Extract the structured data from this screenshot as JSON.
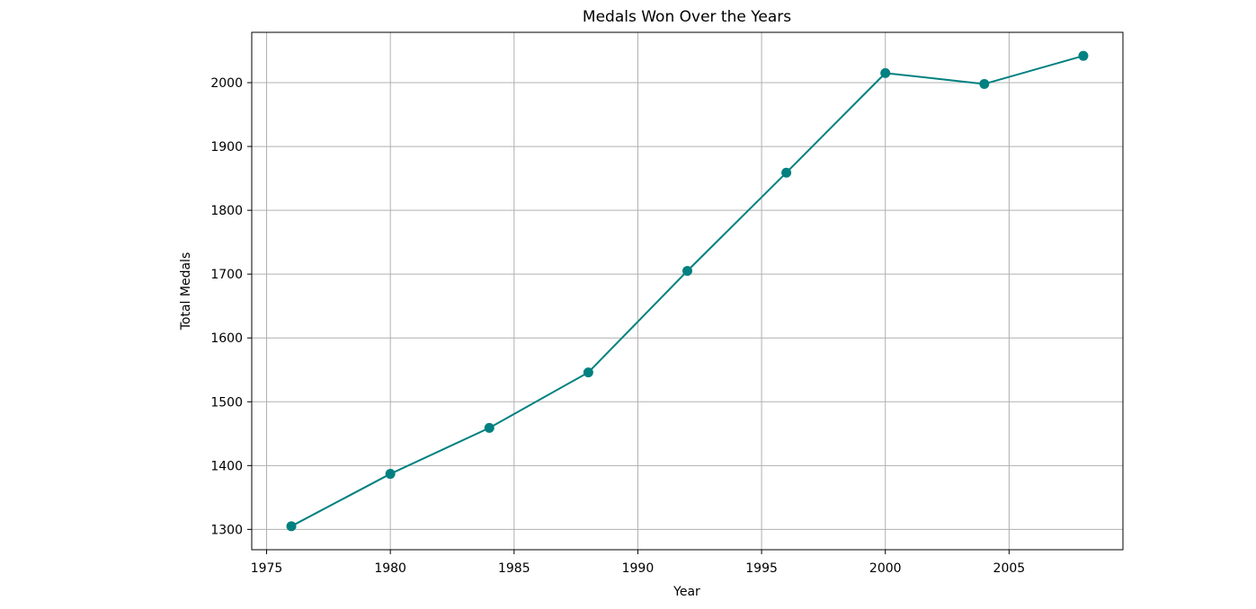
{
  "chart_data": {
    "type": "line",
    "title": "Medals Won Over the Years",
    "xlabel": "Year",
    "ylabel": "Total Medals",
    "x": [
      1976,
      1980,
      1984,
      1988,
      1992,
      1996,
      2000,
      2004,
      2008
    ],
    "series": [
      {
        "values": [
          1305,
          1387,
          1459,
          1546,
          1705,
          1859,
          2015,
          1998,
          2042
        ],
        "color": "#008080"
      }
    ],
    "x_ticks": [
      1975,
      1980,
      1985,
      1990,
      1995,
      2000,
      2005
    ],
    "x_tick_labels": [
      "1975",
      "1980",
      "1985",
      "1990",
      "1995",
      "2000",
      "2005"
    ],
    "y_ticks": [
      1300,
      1400,
      1500,
      1600,
      1700,
      1800,
      1900,
      2000
    ],
    "y_tick_labels": [
      "1300",
      "1400",
      "1500",
      "1600",
      "1700",
      "1800",
      "1900",
      "2000"
    ],
    "xlim": [
      1974.4,
      2009.6
    ],
    "ylim": [
      1268.15,
      2078.85
    ],
    "grid": true,
    "marker": "circle"
  }
}
